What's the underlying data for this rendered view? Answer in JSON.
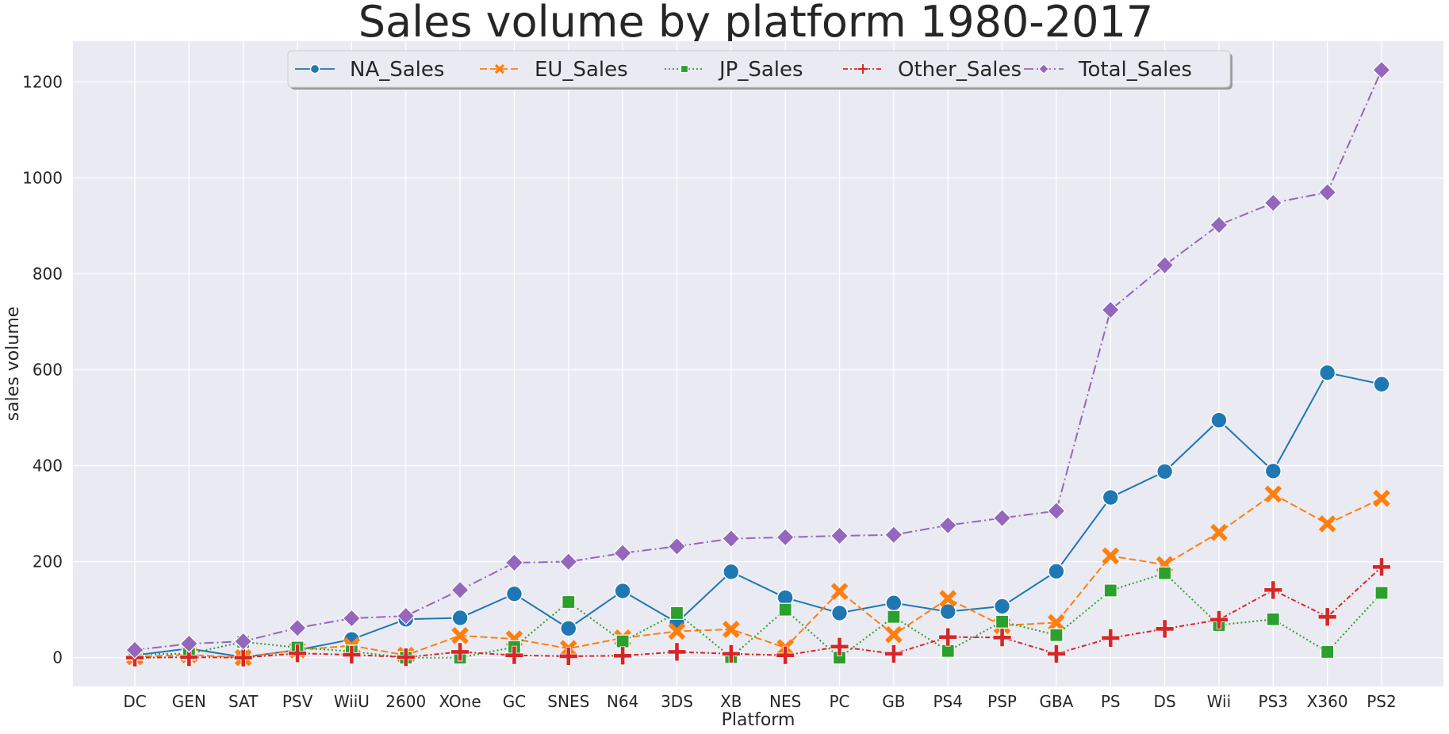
{
  "chart_data": {
    "type": "line",
    "title": "Sales volume by platform 1980-2017",
    "xlabel": "Platform",
    "ylabel": "sales volume",
    "ylim": [
      -60,
      1285
    ],
    "yticks": [
      0,
      200,
      400,
      600,
      800,
      1000,
      1200
    ],
    "grid": true,
    "legend_placement": "top-center",
    "categories": [
      "DC",
      "GEN",
      "SAT",
      "PSV",
      "WiiU",
      "2600",
      "XOne",
      "GC",
      "SNES",
      "N64",
      "3DS",
      "XB",
      "NES",
      "PC",
      "GB",
      "PS4",
      "PSP",
      "GBA",
      "PS",
      "DS",
      "Wii",
      "PS3",
      "X360",
      "PS2"
    ],
    "series": [
      {
        "name": "NA_Sales",
        "color": "#1f77b4",
        "line_style": "solid",
        "marker": "circle",
        "values": [
          5,
          19,
          1,
          16,
          38,
          80,
          83,
          133,
          61,
          139,
          73,
          179,
          125,
          93,
          114,
          96,
          107,
          180,
          334,
          388,
          495,
          389,
          594,
          570
        ]
      },
      {
        "name": "EU_Sales",
        "color": "#ff7f0e",
        "line_style": "dashed",
        "marker": "x",
        "values": [
          2,
          6,
          0,
          16,
          25,
          5,
          46,
          39,
          19,
          41,
          55,
          59,
          21,
          138,
          48,
          123,
          67,
          73,
          212,
          194,
          261,
          341,
          279,
          332
        ]
      },
      {
        "name": "JP_Sales",
        "color": "#2ca02c",
        "line_style": "dotted",
        "marker": "square",
        "values": [
          8,
          8,
          33,
          21,
          13,
          0,
          0,
          22,
          116,
          34,
          93,
          1,
          100,
          0,
          85,
          14,
          75,
          47,
          140,
          176,
          68,
          80,
          12,
          135
        ]
      },
      {
        "name": "Other_Sales",
        "color": "#d62728",
        "line_style": "dashdot-dense",
        "marker": "plus",
        "values": [
          0,
          1,
          0,
          9,
          6,
          1,
          12,
          5,
          3,
          4,
          12,
          8,
          5,
          23,
          8,
          43,
          42,
          8,
          41,
          60,
          79,
          141,
          85,
          189
        ]
      },
      {
        "name": "Total_Sales",
        "color": "#9467bd",
        "line_style": "dashdot",
        "marker": "diamond",
        "values": [
          16,
          29,
          34,
          62,
          82,
          87,
          141,
          198,
          200,
          218,
          232,
          248,
          251,
          254,
          256,
          276,
          291,
          306,
          725,
          818,
          902,
          948,
          970,
          1225
        ]
      }
    ]
  }
}
